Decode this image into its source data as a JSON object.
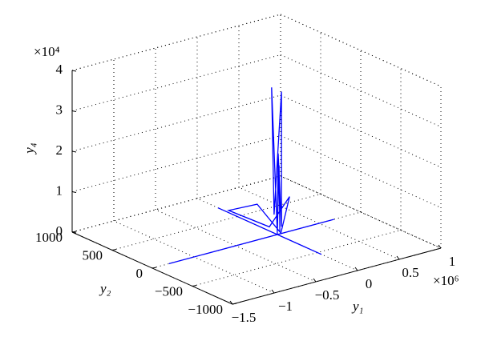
{
  "chart_data": {
    "type": "line3d",
    "x_label": "y₁",
    "y_label": "y₂",
    "z_label": "y₄",
    "x_multiplier": "×10⁶",
    "z_multiplier": "×10⁴",
    "xlim": [
      -1500000,
      1000000
    ],
    "ylim": [
      -1000,
      1000
    ],
    "zlim": [
      0,
      40000
    ],
    "xticks": [
      {
        "value": -1500000,
        "label": "−1.5"
      },
      {
        "value": -1000000,
        "label": "−1"
      },
      {
        "value": -500000,
        "label": "−0.5"
      },
      0,
      {
        "value": 500000,
        "label": "0.5"
      },
      {
        "value": 1000000,
        "label": "1"
      }
    ],
    "yticks": [
      {
        "value": -1000,
        "label": "−1000"
      },
      {
        "value": -500,
        "label": "−500"
      },
      0,
      500,
      1000
    ],
    "zticks": [
      0,
      {
        "value": 10000,
        "label": "1"
      },
      {
        "value": 20000,
        "label": "2"
      },
      {
        "value": 30000,
        "label": "3"
      },
      {
        "value": 40000,
        "label": "4"
      }
    ],
    "grid": true,
    "series": [
      {
        "color": "#0000ff",
        "x": [
          -1300000,
          680000,
          null,
          0,
          0,
          null,
          0,
          -50000,
          -30000,
          20000,
          30000,
          10000,
          0,
          20000,
          30000,
          -50000,
          -200000,
          0,
          50000,
          40000
        ],
        "y": [
          0,
          0,
          null,
          740,
          -550,
          null,
          0,
          20,
          10,
          -30,
          -20,
          0,
          0,
          0,
          0,
          200,
          400,
          100,
          -100,
          0
        ],
        "z": [
          0,
          0,
          null,
          0,
          0,
          null,
          0,
          36500,
          5000,
          35500,
          2000,
          20000,
          1000,
          17000,
          500,
          6000,
          3500,
          1000,
          10000,
          0
        ]
      }
    ]
  }
}
